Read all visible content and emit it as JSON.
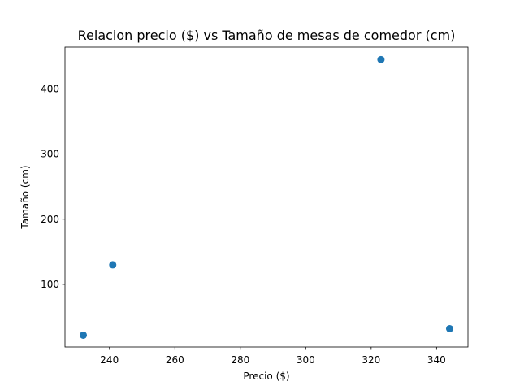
{
  "chart_data": {
    "type": "scatter",
    "title": "Relacion precio ($) vs Tamaño de mesas de comedor (cm)",
    "xlabel": "Precio ($)",
    "ylabel": "Tamaño (cm)",
    "xlim": [
      226.4,
      349.6
    ],
    "ylim": [
      3.9,
      464.1
    ],
    "xticks": [
      240,
      260,
      280,
      300,
      320,
      340
    ],
    "yticks": [
      100,
      200,
      300,
      400
    ],
    "grid": false,
    "legend": "none",
    "series": [
      {
        "color": "#1f77b4",
        "points": [
          {
            "x": 232,
            "y": 22
          },
          {
            "x": 241,
            "y": 130
          },
          {
            "x": 323,
            "y": 445
          },
          {
            "x": 344,
            "y": 32
          }
        ]
      }
    ]
  }
}
